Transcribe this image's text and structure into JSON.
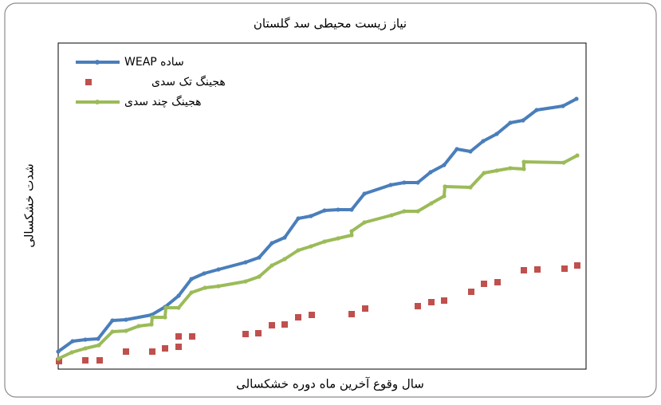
{
  "chart_data": {
    "type": "line",
    "title": "نیاز زیست محیطی سد گلستان",
    "xlabel": "سال وقوع آخرین ماه دوره خشکسالی",
    "ylabel": "شدت خشکسالی",
    "xlim": [
      0,
      662
    ],
    "ylim": [
      0,
      409
    ],
    "series": [
      {
        "name": "ساده WEAP",
        "color": "#4a7ebb",
        "style": "line",
        "x": [
          0,
          18,
          34,
          50,
          68,
          85,
          117,
          134,
          151,
          167,
          183,
          201,
          235,
          252,
          268,
          284,
          301,
          317,
          334,
          351,
          368,
          384,
          417,
          434,
          451,
          467,
          484,
          500,
          517,
          533,
          550,
          567,
          583,
          600,
          633,
          650
        ],
        "values": [
          22,
          35,
          37,
          38,
          61,
          62,
          68,
          78,
          92,
          113,
          120,
          125,
          134,
          140,
          158,
          165,
          189,
          192,
          199,
          200,
          200,
          220,
          231,
          234,
          234,
          247,
          256,
          276,
          273,
          286,
          295,
          309,
          312,
          325,
          330,
          339
        ]
      },
      {
        "name": "هجینگ تک سدی",
        "color": "#c0504d",
        "style": "square",
        "x": [
          1,
          34,
          52,
          85,
          118,
          134,
          151,
          151,
          168,
          235,
          251,
          268,
          284,
          301,
          318,
          368,
          385,
          451,
          468,
          484,
          518,
          534,
          551,
          584,
          601,
          635,
          651
        ],
        "values": [
          10,
          11,
          11,
          22,
          22,
          26,
          28,
          41,
          41,
          44,
          45,
          55,
          56,
          65,
          68,
          69,
          76,
          79,
          84,
          86,
          97,
          107,
          109,
          124,
          125,
          126,
          130
        ]
      },
      {
        "name": "هجینگ چند سدی",
        "color": "#9bbb59",
        "style": "line",
        "x": [
          0,
          17,
          34,
          51,
          68,
          85,
          101,
          117,
          118,
          134,
          135,
          151,
          167,
          184,
          201,
          235,
          252,
          268,
          284,
          301,
          317,
          334,
          351,
          368,
          368,
          384,
          418,
          434,
          451,
          468,
          484,
          485,
          517,
          534,
          550,
          567,
          584,
          584,
          634,
          651
        ],
        "values": [
          13,
          21,
          26,
          30,
          47,
          48,
          54,
          56,
          65,
          65,
          77,
          77,
          96,
          102,
          104,
          110,
          116,
          130,
          138,
          149,
          154,
          160,
          164,
          168,
          173,
          184,
          193,
          198,
          198,
          208,
          217,
          229,
          228,
          246,
          249,
          252,
          251,
          260,
          259,
          268
        ]
      }
    ]
  }
}
